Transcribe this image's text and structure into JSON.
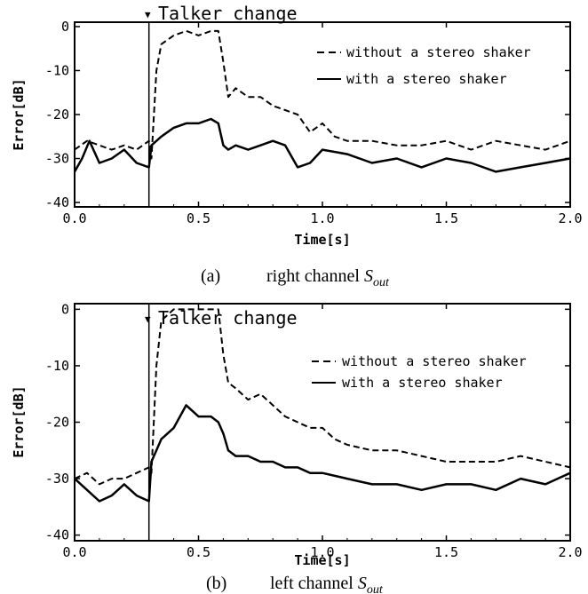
{
  "figure": {
    "panels": [
      {
        "id": "a",
        "marker_label": "Talker change",
        "caption_letter": "(a)",
        "caption_text": "right channel ",
        "caption_symbol": "S",
        "caption_sub": "out",
        "ylabel": "Error[dB]",
        "xlabel": "Time[s]",
        "xticks": [
          "0.0",
          "0.5",
          "1.0",
          "1.5",
          "2.0"
        ],
        "yticks": [
          "0",
          "-10",
          "-20",
          "-30",
          "-40"
        ],
        "legend": [
          "without a stereo shaker",
          "with a stereo shaker"
        ]
      },
      {
        "id": "b",
        "marker_label": "Talker change",
        "caption_letter": "(b)",
        "caption_text": "left channel ",
        "caption_symbol": "S",
        "caption_sub": "out",
        "ylabel": "Error[dB]",
        "xlabel": "Time[s]",
        "xticks": [
          "0.0",
          "0.5",
          "1.0",
          "1.5",
          "2.0"
        ],
        "yticks": [
          "0",
          "-10",
          "-20",
          "-30",
          "-40"
        ],
        "legend": [
          "without a stereo shaker",
          "with a stereo shaker"
        ]
      }
    ]
  },
  "chart_data": [
    {
      "type": "line",
      "xlabel": "Time[s]",
      "ylabel": "Error[dB]",
      "xlim": [
        0.0,
        2.0
      ],
      "ylim": [
        -41,
        1
      ],
      "grid": false,
      "legend_position": "top-right",
      "annotations": [
        {
          "text": "Talker change",
          "x": 0.3
        }
      ],
      "series": [
        {
          "name": "without a stereo shaker",
          "style": "dashed",
          "x": [
            0.0,
            0.05,
            0.1,
            0.15,
            0.2,
            0.25,
            0.3,
            0.31,
            0.33,
            0.35,
            0.4,
            0.45,
            0.5,
            0.55,
            0.58,
            0.6,
            0.62,
            0.65,
            0.7,
            0.75,
            0.8,
            0.85,
            0.9,
            0.95,
            1.0,
            1.05,
            1.1,
            1.2,
            1.3,
            1.4,
            1.5,
            1.6,
            1.7,
            1.8,
            1.9,
            2.0
          ],
          "values": [
            -28,
            -26,
            -27,
            -28,
            -27,
            -28,
            -26,
            -30,
            -10,
            -4,
            -2,
            -1,
            -2,
            -1,
            -1,
            -8,
            -16,
            -14,
            -16,
            -16,
            -18,
            -19,
            -20,
            -24,
            -22,
            -25,
            -26,
            -26,
            -27,
            -27,
            -26,
            -28,
            -26,
            -27,
            -28,
            -26
          ]
        },
        {
          "name": "with a stereo shaker",
          "style": "solid",
          "x": [
            0.0,
            0.03,
            0.06,
            0.1,
            0.15,
            0.2,
            0.25,
            0.3,
            0.31,
            0.35,
            0.4,
            0.45,
            0.5,
            0.55,
            0.58,
            0.6,
            0.62,
            0.65,
            0.7,
            0.75,
            0.8,
            0.85,
            0.9,
            0.95,
            1.0,
            1.1,
            1.2,
            1.3,
            1.4,
            1.5,
            1.6,
            1.7,
            1.8,
            1.9,
            2.0
          ],
          "values": [
            -33,
            -30,
            -26,
            -31,
            -30,
            -28,
            -31,
            -32,
            -27,
            -25,
            -23,
            -22,
            -22,
            -21,
            -22,
            -27,
            -28,
            -27,
            -28,
            -27,
            -26,
            -27,
            -32,
            -31,
            -28,
            -29,
            -31,
            -30,
            -32,
            -30,
            -31,
            -33,
            -32,
            -31,
            -30
          ]
        }
      ]
    },
    {
      "type": "line",
      "xlabel": "Time[s]",
      "ylabel": "Error[dB]",
      "xlim": [
        0.0,
        2.0
      ],
      "ylim": [
        -41,
        1
      ],
      "grid": false,
      "legend_position": "top-right",
      "annotations": [
        {
          "text": "Talker change",
          "x": 0.3
        }
      ],
      "series": [
        {
          "name": "without a stereo shaker",
          "style": "dashed",
          "x": [
            0.0,
            0.05,
            0.1,
            0.15,
            0.2,
            0.25,
            0.3,
            0.31,
            0.33,
            0.35,
            0.4,
            0.45,
            0.5,
            0.55,
            0.58,
            0.6,
            0.62,
            0.65,
            0.7,
            0.75,
            0.8,
            0.85,
            0.9,
            0.95,
            1.0,
            1.05,
            1.1,
            1.2,
            1.3,
            1.4,
            1.5,
            1.6,
            1.7,
            1.8,
            1.9,
            2.0
          ],
          "values": [
            -30,
            -29,
            -31,
            -30,
            -30,
            -29,
            -28,
            -29,
            -10,
            -2,
            0,
            0,
            0,
            0,
            0,
            -8,
            -13,
            -14,
            -16,
            -15,
            -17,
            -19,
            -20,
            -21,
            -21,
            -23,
            -24,
            -25,
            -25,
            -26,
            -27,
            -27,
            -27,
            -26,
            -27,
            -28
          ]
        },
        {
          "name": "with a stereo shaker",
          "style": "solid",
          "x": [
            0.0,
            0.05,
            0.1,
            0.15,
            0.2,
            0.25,
            0.3,
            0.31,
            0.35,
            0.4,
            0.45,
            0.5,
            0.55,
            0.58,
            0.6,
            0.62,
            0.65,
            0.7,
            0.75,
            0.8,
            0.85,
            0.9,
            0.95,
            1.0,
            1.1,
            1.2,
            1.3,
            1.4,
            1.5,
            1.6,
            1.7,
            1.8,
            1.9,
            2.0
          ],
          "values": [
            -30,
            -32,
            -34,
            -33,
            -31,
            -33,
            -34,
            -27,
            -23,
            -21,
            -17,
            -19,
            -19,
            -20,
            -22,
            -25,
            -26,
            -26,
            -27,
            -27,
            -28,
            -28,
            -29,
            -29,
            -30,
            -31,
            -31,
            -32,
            -31,
            -31,
            -32,
            -30,
            -31,
            -29
          ]
        }
      ]
    }
  ]
}
